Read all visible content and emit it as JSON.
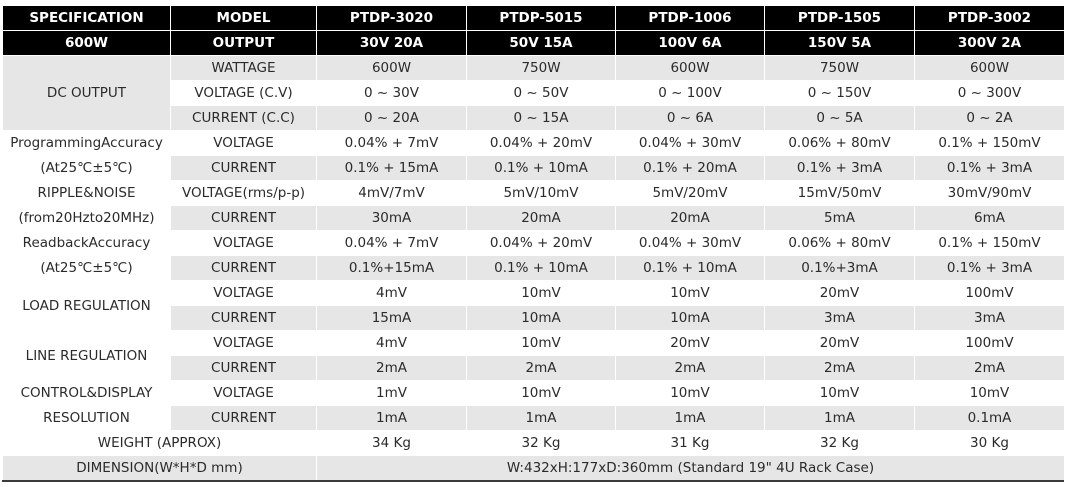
{
  "header": {
    "row1": [
      "SPECIFICATION",
      "MODEL",
      "PTDP-3020",
      "PTDP-5015",
      "PTDP-1006",
      "PTDP-1505",
      "PTDP-3002"
    ],
    "row2": [
      "600W",
      "OUTPUT",
      "30V 20A",
      "50V 15A",
      "100V 6A",
      "150V 5A",
      "300V 2A"
    ]
  },
  "labels": {
    "dc_output": "DC OUTPUT",
    "prog_acc_1": "ProgrammingAccuracy",
    "prog_acc_2": "(At25℃±5℃)",
    "ripple_1": "RIPPLE&NOISE",
    "ripple_2": "(from20Hzto20MHz)",
    "readback_1": "ReadbackAccuracy",
    "readback_2": "(At25℃±5℃)",
    "load_reg": "LOAD REGULATION",
    "line_reg": "LINE REGULATION",
    "ctrl_1": "CONTROL&DISPLAY",
    "ctrl_2": "RESOLUTION",
    "weight": "WEIGHT (APPROX)",
    "dimension": "DIMENSION(W*H*D mm)"
  },
  "rows": [
    {
      "sub": "WATTAGE",
      "values": [
        "600W",
        "750W",
        "600W",
        "750W",
        "600W"
      ]
    },
    {
      "sub": "VOLTAGE (C.V)",
      "values": [
        "0 ~ 30V",
        "0 ~ 50V",
        "0 ~ 100V",
        "0 ~ 150V",
        "0 ~ 300V"
      ]
    },
    {
      "sub": "CURRENT (C.C)",
      "values": [
        "0 ~ 20A",
        "0 ~ 15A",
        "0 ~ 6A",
        "0 ~ 5A",
        "0 ~ 2A"
      ]
    },
    {
      "sub": "VOLTAGE",
      "values": [
        "0.04% + 7mV",
        "0.04% + 20mV",
        "0.04% + 30mV",
        "0.06% + 80mV",
        "0.1% + 150mV"
      ]
    },
    {
      "sub": "CURRENT",
      "values": [
        "0.1% + 15mA",
        "0.1% + 10mA",
        "0.1% + 20mA",
        "0.1% + 3mA",
        "0.1% + 3mA"
      ]
    },
    {
      "sub": "VOLTAGE(rms/p-p)",
      "values": [
        "4mV/7mV",
        "5mV/10mV",
        "5mV/20mV",
        "15mV/50mV",
        "30mV/90mV"
      ]
    },
    {
      "sub": "CURRENT",
      "values": [
        "30mA",
        "20mA",
        "20mA",
        "5mA",
        "6mA"
      ]
    },
    {
      "sub": "VOLTAGE",
      "values": [
        "0.04% + 7mV",
        "0.04% + 20mV",
        "0.04% + 30mV",
        "0.06% + 80mV",
        "0.1% + 150mV"
      ]
    },
    {
      "sub": "CURRENT",
      "values": [
        "0.1%+15mA",
        "0.1% + 10mA",
        "0.1% + 10mA",
        "0.1%+3mA",
        "0.1% + 3mA"
      ]
    },
    {
      "sub": "VOLTAGE",
      "values": [
        "4mV",
        "10mV",
        "10mV",
        "20mV",
        "100mV"
      ]
    },
    {
      "sub": "CURRENT",
      "values": [
        "15mA",
        "10mA",
        "10mA",
        "3mA",
        "3mA"
      ]
    },
    {
      "sub": "VOLTAGE",
      "values": [
        "4mV",
        "10mV",
        "20mV",
        "20mV",
        "100mV"
      ]
    },
    {
      "sub": "CURRENT",
      "values": [
        "2mA",
        "2mA",
        "2mA",
        "2mA",
        "2mA"
      ]
    },
    {
      "sub": "VOLTAGE",
      "values": [
        "1mV",
        "10mV",
        "10mV",
        "10mV",
        "10mV"
      ]
    },
    {
      "sub": "CURRENT",
      "values": [
        "1mA",
        "1mA",
        "1mA",
        "1mA",
        "0.1mA"
      ]
    }
  ],
  "weight_values": [
    "34 Kg",
    "32 Kg",
    "31 Kg",
    "32 Kg",
    "30 Kg"
  ],
  "dimension_value": "W:432xH:177xD:360mm (Standard 19\" 4U Rack Case)"
}
